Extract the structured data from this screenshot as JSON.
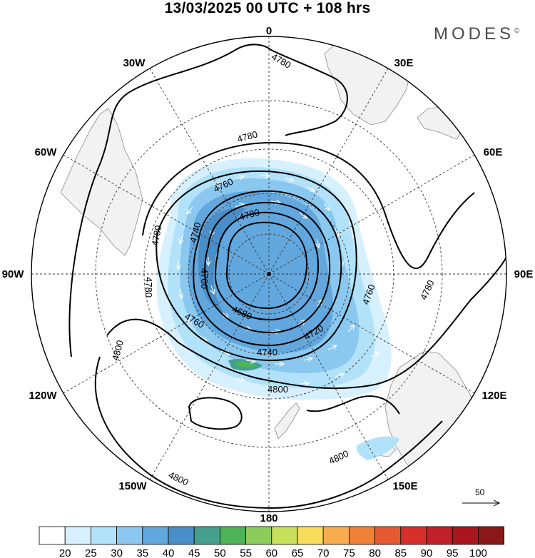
{
  "header": {
    "title": "13/03/2025  00 UTC  + 108 hrs",
    "brand": "MODES",
    "brand_mark": "©"
  },
  "map": {
    "projection": "south polar stereographic",
    "longitude_labels": [
      "0",
      "30E",
      "60E",
      "90E",
      "120E",
      "150E",
      "180",
      "150W",
      "120W",
      "90W",
      "60W",
      "30W"
    ],
    "contour_labels": [
      "4780",
      "4780",
      "4760",
      "4740",
      "4700",
      "4780",
      "4780",
      "4700",
      "4680",
      "4760",
      "4720",
      "4740",
      "4760",
      "4780",
      "4800",
      "4800",
      "4800",
      "4800"
    ],
    "contour_color": "#000000",
    "land_color": "#f2f2f2",
    "wind_reference_label": "50"
  },
  "colorbar": {
    "labels": [
      "20",
      "25",
      "30",
      "35",
      "40",
      "45",
      "50",
      "55",
      "60",
      "65",
      "70",
      "75",
      "80",
      "85",
      "90",
      "95",
      "100"
    ],
    "colors": [
      "#ffffff",
      "#d6f0fd",
      "#b1e2f9",
      "#8ac8ef",
      "#62a7dd",
      "#4a8ec9",
      "#44a08c",
      "#4db45a",
      "#8ccc5a",
      "#c8e05a",
      "#f7dd5a",
      "#f6ac4f",
      "#ef8237",
      "#e55a30",
      "#d7302a",
      "#c4202a",
      "#a8161f",
      "#8a1818"
    ]
  }
}
